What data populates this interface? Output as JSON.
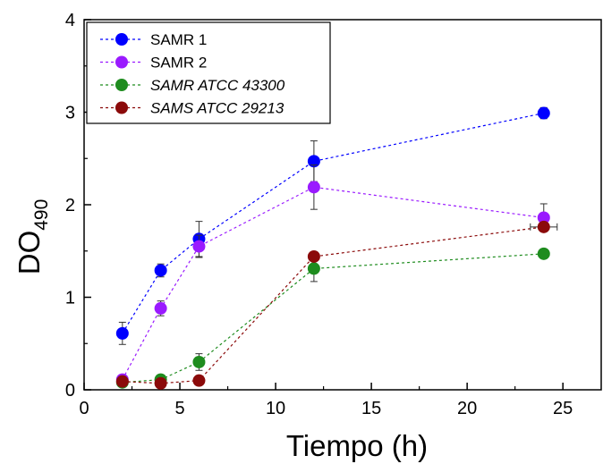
{
  "chart_data": {
    "type": "scatter",
    "xlabel": "Tiempo (h)",
    "ylabel_main": "DO",
    "ylabel_sub": "490",
    "xlim": [
      0,
      27
    ],
    "ylim": [
      0,
      4
    ],
    "xticks": [
      0,
      5,
      10,
      15,
      20,
      25
    ],
    "yticks": [
      0,
      1,
      2,
      3,
      4
    ],
    "grid": false,
    "legend_position": "top-left",
    "series": [
      {
        "name": "SAMR 1",
        "italic": false,
        "color": "#0000ff",
        "points": [
          {
            "x": 2,
            "y": 0.61,
            "err": 0.12
          },
          {
            "x": 4,
            "y": 1.29,
            "err": 0.07
          },
          {
            "x": 6,
            "y": 1.63,
            "err": 0.19
          },
          {
            "x": 12,
            "y": 2.47,
            "err": 0.22
          },
          {
            "x": 24,
            "y": 2.99,
            "err": 0.06
          }
        ]
      },
      {
        "name": "SAMR 2",
        "italic": false,
        "color": "#9a1aff",
        "points": [
          {
            "x": 2,
            "y": 0.11,
            "err": 0.03
          },
          {
            "x": 4,
            "y": 0.88,
            "err": 0.08
          },
          {
            "x": 6,
            "y": 1.55,
            "err": 0.12
          },
          {
            "x": 12,
            "y": 2.19,
            "err": 0.24
          },
          {
            "x": 24,
            "y": 1.86,
            "err": 0.15
          }
        ]
      },
      {
        "name": "SAMR ATCC 43300",
        "italic": true,
        "color": "#1e8c1e",
        "points": [
          {
            "x": 2,
            "y": 0.08,
            "err": 0.02
          },
          {
            "x": 4,
            "y": 0.11,
            "err": 0.02
          },
          {
            "x": 6,
            "y": 0.3,
            "err": 0.09
          },
          {
            "x": 12,
            "y": 1.31,
            "err": 0.14
          },
          {
            "x": 24,
            "y": 1.47,
            "err": 0.05
          }
        ]
      },
      {
        "name": "SAMS ATCC 29213",
        "italic": true,
        "color": "#8b0a0a",
        "points": [
          {
            "x": 2,
            "y": 0.09,
            "err": 0.02
          },
          {
            "x": 4,
            "y": 0.07,
            "err": 0.02
          },
          {
            "x": 6,
            "y": 0.1,
            "err": 0.02
          },
          {
            "x": 12,
            "y": 1.44,
            "err": 0.03
          },
          {
            "x": 24,
            "y": 1.76,
            "err": 0.04,
            "xerr": 0.7
          }
        ]
      }
    ]
  }
}
